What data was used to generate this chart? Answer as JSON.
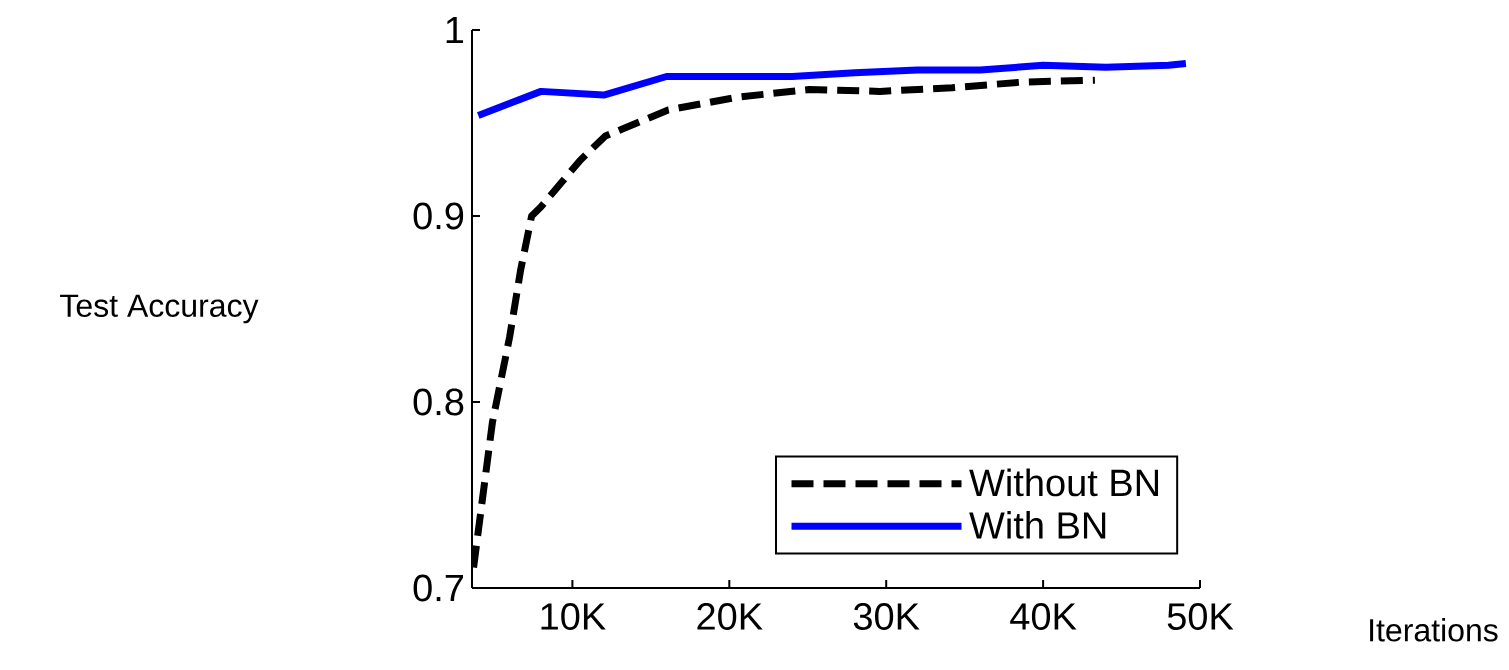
{
  "chart_data": {
    "type": "line",
    "xlabel": "Iterations",
    "ylabel": "Test Accuracy",
    "xlim": [
      3600,
      50000
    ],
    "ylim": [
      0.7,
      1
    ],
    "xticks": [
      {
        "value": 10000,
        "label": "10K"
      },
      {
        "value": 20000,
        "label": "20K"
      },
      {
        "value": 30000,
        "label": "30K"
      },
      {
        "value": 40000,
        "label": "40K"
      },
      {
        "value": 50000,
        "label": "50K"
      }
    ],
    "yticks": [
      {
        "value": 0.7,
        "label": "0.7"
      },
      {
        "value": 0.8,
        "label": "0.8"
      },
      {
        "value": 0.9,
        "label": "0.9"
      },
      {
        "value": 1,
        "label": "1"
      }
    ],
    "legend": "bottom right",
    "grid": false,
    "marker": "none",
    "series": [
      {
        "name": "Without BN",
        "color": "#000000",
        "line_style": "dashed",
        "x": [
          3700,
          4900,
          6000,
          6700,
          7400,
          8000,
          10500,
          12100,
          16100,
          20600,
          25100,
          29600,
          34200,
          38700,
          43300
        ],
        "values": [
          0.711,
          0.789,
          0.835,
          0.871,
          0.9,
          0.905,
          0.93,
          0.943,
          0.957,
          0.964,
          0.968,
          0.967,
          0.969,
          0.972,
          0.973
        ]
      },
      {
        "name": "With BN",
        "color": "#0000ff",
        "line_style": "solid",
        "x": [
          4000,
          8000,
          12000,
          16000,
          20000,
          24000,
          28000,
          32000,
          36000,
          40000,
          44000,
          48000,
          49100
        ],
        "values": [
          0.954,
          0.967,
          0.965,
          0.975,
          0.975,
          0.975,
          0.977,
          0.9785,
          0.9785,
          0.981,
          0.98,
          0.981,
          0.982
        ]
      }
    ]
  }
}
